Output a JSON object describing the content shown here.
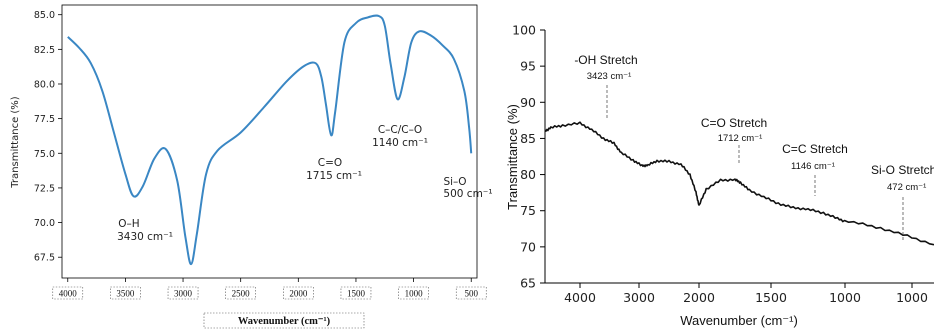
{
  "chart_data": [
    {
      "type": "line",
      "title": "",
      "xlabel": "Wavenumber (cm⁻¹)",
      "ylabel": "Transmittance (%)",
      "xlim": [
        4050,
        450
      ],
      "ylim": [
        66.0,
        85.7
      ],
      "x_ticks": [
        "4000",
        "3500",
        "3000",
        "2500",
        "2000",
        "1500",
        "1000",
        "500"
      ],
      "y_ticks": [
        "67.5",
        "70.0",
        "72.5",
        "75.0",
        "77.5",
        "80.0",
        "82.5",
        "85.0"
      ],
      "grid": false,
      "color": "#3a87c4",
      "series": [
        {
          "x": [
            4000,
            3900,
            3800,
            3700,
            3600,
            3500,
            3430,
            3350,
            3250,
            3150,
            3050,
            2980,
            2930,
            2880,
            2800,
            2700,
            2500,
            2300,
            2100,
            1950,
            1850,
            1800,
            1760,
            1715,
            1680,
            1600,
            1500,
            1400,
            1300,
            1250,
            1200,
            1140,
            1080,
            1020,
            950,
            850,
            750,
            650,
            560,
            520,
            500
          ],
          "y": [
            83.4,
            82.6,
            81.5,
            79.5,
            76.5,
            73.5,
            71.9,
            72.6,
            74.6,
            75.3,
            73.0,
            69.0,
            67.0,
            69.2,
            73.5,
            75.2,
            76.5,
            78.3,
            80.2,
            81.3,
            81.5,
            80.5,
            78.5,
            76.3,
            78.0,
            83.0,
            84.4,
            84.8,
            84.9,
            84.2,
            81.5,
            78.9,
            80.5,
            83.0,
            83.8,
            83.5,
            82.8,
            81.8,
            79.5,
            77.0,
            75.0
          ]
        }
      ],
      "annotations": [
        {
          "label": "O–H",
          "value": "3430 cm⁻¹"
        },
        {
          "label": "C=O",
          "value": "1715 cm⁻¹"
        },
        {
          "label": "C–C/C–O",
          "value": "1140 cm⁻¹"
        },
        {
          "label": "Si–O",
          "value": "500 cm⁻¹"
        }
      ]
    },
    {
      "type": "line",
      "title": "",
      "xlabel": "Wavenumber (cm⁻¹)",
      "ylabel": "Transmittance (%)",
      "xlim": [
        4600,
        800
      ],
      "ylim": [
        65,
        100
      ],
      "x_ticks": [
        "4000",
        "3000",
        "2000",
        "1500",
        "1000",
        "1000"
      ],
      "y_ticks": [
        "65",
        "70",
        "75",
        "80",
        "85",
        "90",
        "95",
        "100"
      ],
      "grid": false,
      "color": "#111111",
      "series": [
        {
          "x": [
            4600,
            4500,
            4300,
            4000,
            3800,
            3600,
            3423,
            3300,
            3100,
            2950,
            2850,
            2700,
            2500,
            2300,
            2150,
            2050,
            2000,
            1950,
            1850,
            1750,
            1712,
            1650,
            1550,
            1450,
            1350,
            1250,
            1146,
            1050,
            980,
            920,
            860,
            800
          ],
          "y": [
            86.0,
            86.5,
            86.8,
            87.1,
            86.2,
            85.0,
            84.3,
            83.0,
            82.0,
            81.2,
            81.3,
            81.9,
            81.8,
            81.4,
            80.0,
            77.5,
            75.7,
            78.0,
            79.2,
            79.3,
            78.9,
            77.8,
            76.9,
            76.0,
            75.4,
            75.2,
            74.7,
            73.9,
            73.4,
            72.6,
            71.5,
            70.3
          ]
        }
      ],
      "annotations": [
        {
          "label": "-OH Stretch",
          "value": "3423 cm⁻¹"
        },
        {
          "label": "C=O Stretch",
          "value": "1712 cm⁻¹"
        },
        {
          "label": "C=C Stretch",
          "value": "1146 cm⁻¹"
        },
        {
          "label": "Si-O Stretch",
          "value": "472 cm⁻¹"
        }
      ]
    }
  ]
}
